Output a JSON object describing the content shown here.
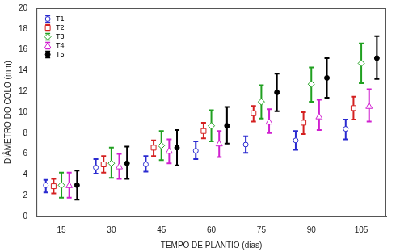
{
  "chart_data": {
    "type": "errorbar",
    "x_label": "TEMPO DE PLANTIO (dias)",
    "y_label": "DIÂMETRO DO COLO (mm)",
    "categories": [
      "15",
      "30",
      "45",
      "60",
      "75",
      "90",
      "105"
    ],
    "ylim": [
      0,
      20
    ],
    "yticks": [
      0,
      2,
      4,
      6,
      8,
      10,
      12,
      14,
      16,
      18,
      20
    ],
    "grid": false,
    "legend": "upper left",
    "series": [
      {
        "name": "T1",
        "color": "#2a2ad0",
        "marker": "circle",
        "values": [
          3.0,
          4.7,
          5.0,
          6.3,
          6.9,
          7.3,
          8.4
        ],
        "lower": [
          2.3,
          4.1,
          4.3,
          5.5,
          6.1,
          6.4,
          7.4
        ],
        "upper": [
          3.5,
          5.5,
          5.8,
          7.2,
          7.7,
          8.2,
          9.3
        ]
      },
      {
        "name": "T2",
        "color": "#d42020",
        "marker": "square",
        "values": [
          2.9,
          5.0,
          6.6,
          8.2,
          9.9,
          9.0,
          10.4
        ],
        "lower": [
          2.2,
          4.2,
          5.8,
          7.5,
          9.1,
          7.9,
          9.3
        ],
        "upper": [
          3.6,
          5.8,
          7.3,
          9.0,
          10.6,
          10.0,
          11.5
        ]
      },
      {
        "name": "T3",
        "color": "#20a020",
        "marker": "diamond",
        "values": [
          3.0,
          5.1,
          6.8,
          8.7,
          11.0,
          12.7,
          14.7
        ],
        "lower": [
          1.8,
          3.7,
          5.4,
          7.2,
          9.4,
          11.0,
          12.8
        ],
        "upper": [
          4.2,
          6.6,
          8.2,
          10.2,
          12.6,
          14.3,
          16.6
        ]
      },
      {
        "name": "T4",
        "color": "#d020d0",
        "marker": "triangle",
        "values": [
          3.0,
          4.8,
          6.3,
          7.0,
          9.1,
          9.6,
          10.6
        ],
        "lower": [
          1.8,
          3.6,
          5.1,
          5.7,
          8.0,
          8.3,
          9.1
        ],
        "upper": [
          4.2,
          6.0,
          7.4,
          8.2,
          10.3,
          11.2,
          12.2
        ]
      },
      {
        "name": "T5",
        "color": "#000000",
        "marker": "dot",
        "values": [
          3.0,
          5.1,
          6.6,
          8.7,
          11.9,
          13.3,
          15.2
        ],
        "lower": [
          1.6,
          3.6,
          4.9,
          7.0,
          10.1,
          11.4,
          13.2
        ],
        "upper": [
          4.4,
          6.7,
          8.3,
          10.5,
          13.7,
          15.2,
          17.3
        ]
      }
    ]
  }
}
